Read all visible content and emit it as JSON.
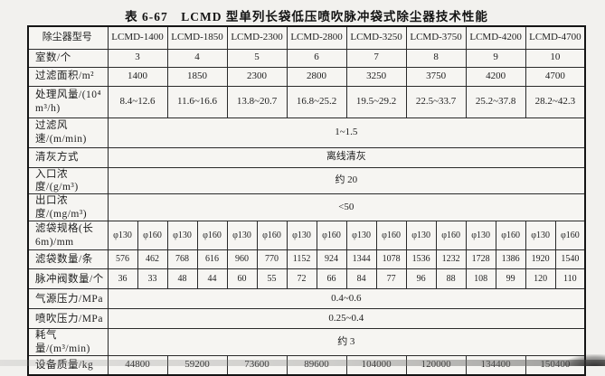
{
  "title": "表 6-67　LCMD 型单列长袋低压喷吹脉冲袋式除尘器技术性能",
  "table": {
    "rows": [
      {
        "label": "除尘器型号",
        "values": [
          "LCMD-1400",
          "LCMD-1850",
          "LCMD-2300",
          "LCMD-2800",
          "LCMD-3250",
          "LCMD-3750",
          "LCMD-4200",
          "LCMD-4700"
        ]
      },
      {
        "label": "室数/个",
        "values": [
          "3",
          "4",
          "5",
          "6",
          "7",
          "8",
          "9",
          "10"
        ]
      },
      {
        "label": "过滤面积/m²",
        "values": [
          "1400",
          "1850",
          "2300",
          "2800",
          "3250",
          "3750",
          "4200",
          "4700"
        ]
      },
      {
        "label": "处理风量/(10⁴ m³/h)",
        "values": [
          "8.4~12.6",
          "11.6~16.6",
          "13.8~20.7",
          "16.8~25.2",
          "19.5~29.2",
          "22.5~33.7",
          "25.2~37.8",
          "28.2~42.3"
        ]
      },
      {
        "label": "过滤风速/(m/min)",
        "values": [
          "1~1.5"
        ]
      },
      {
        "label": "清灰方式",
        "values": [
          "离线清灰"
        ]
      },
      {
        "label": "入口浓度/(g/m³)",
        "values": [
          "约 20"
        ]
      },
      {
        "label": "出口浓度/(mg/m³)",
        "values": [
          "<50"
        ]
      },
      {
        "label": "滤袋规格(长 6m)/mm",
        "values": [
          "φ130",
          "φ160",
          "φ130",
          "φ160",
          "φ130",
          "φ160",
          "φ130",
          "φ160",
          "φ130",
          "φ160",
          "φ130",
          "φ160",
          "φ130",
          "φ160",
          "φ130",
          "φ160"
        ]
      },
      {
        "label": "滤袋数量/条",
        "values": [
          "576",
          "462",
          "768",
          "616",
          "960",
          "770",
          "1152",
          "924",
          "1344",
          "1078",
          "1536",
          "1232",
          "1728",
          "1386",
          "1920",
          "1540"
        ]
      },
      {
        "label": "脉冲阀数量/个",
        "values": [
          "36",
          "33",
          "48",
          "44",
          "60",
          "55",
          "72",
          "66",
          "84",
          "77",
          "96",
          "88",
          "108",
          "99",
          "120",
          "110"
        ]
      },
      {
        "label": "气源压力/MPa",
        "values": [
          "0.4~0.6"
        ]
      },
      {
        "label": "喷吹压力/MPa",
        "values": [
          "0.25~0.4"
        ]
      },
      {
        "label": "耗气量/(m³/min)",
        "values": [
          "约 3"
        ]
      },
      {
        "label": "设备质量/kg",
        "values": [
          "44800",
          "59200",
          "73600",
          "89600",
          "104000",
          "120000",
          "134400",
          "150400"
        ]
      }
    ]
  }
}
